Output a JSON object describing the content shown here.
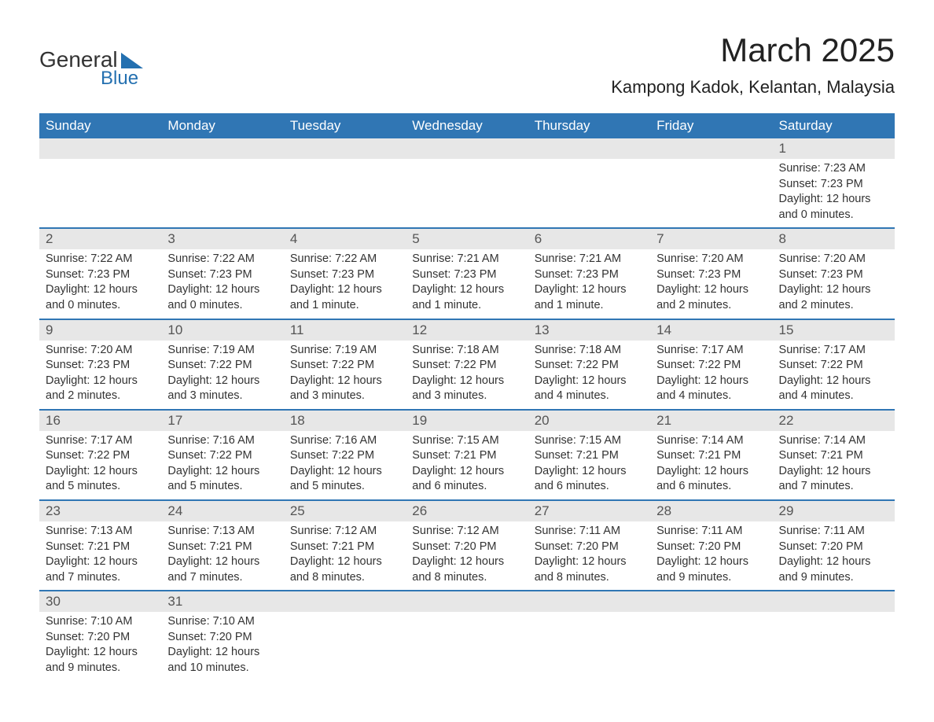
{
  "logo": {
    "text1": "General",
    "text2": "Blue",
    "brand_color": "#2470b0"
  },
  "header": {
    "month_title": "March 2025",
    "location": "Kampong Kadok, Kelantan, Malaysia"
  },
  "colors": {
    "header_bg": "#3076b4",
    "header_text": "#ffffff",
    "daynum_bg": "#e7e7e7",
    "row_border": "#3076b4",
    "text": "#333333"
  },
  "day_headers": [
    "Sunday",
    "Monday",
    "Tuesday",
    "Wednesday",
    "Thursday",
    "Friday",
    "Saturday"
  ],
  "weeks": [
    [
      null,
      null,
      null,
      null,
      null,
      null,
      {
        "num": "1",
        "sunrise": "Sunrise: 7:23 AM",
        "sunset": "Sunset: 7:23 PM",
        "daylight1": "Daylight: 12 hours",
        "daylight2": "and 0 minutes."
      }
    ],
    [
      {
        "num": "2",
        "sunrise": "Sunrise: 7:22 AM",
        "sunset": "Sunset: 7:23 PM",
        "daylight1": "Daylight: 12 hours",
        "daylight2": "and 0 minutes."
      },
      {
        "num": "3",
        "sunrise": "Sunrise: 7:22 AM",
        "sunset": "Sunset: 7:23 PM",
        "daylight1": "Daylight: 12 hours",
        "daylight2": "and 0 minutes."
      },
      {
        "num": "4",
        "sunrise": "Sunrise: 7:22 AM",
        "sunset": "Sunset: 7:23 PM",
        "daylight1": "Daylight: 12 hours",
        "daylight2": "and 1 minute."
      },
      {
        "num": "5",
        "sunrise": "Sunrise: 7:21 AM",
        "sunset": "Sunset: 7:23 PM",
        "daylight1": "Daylight: 12 hours",
        "daylight2": "and 1 minute."
      },
      {
        "num": "6",
        "sunrise": "Sunrise: 7:21 AM",
        "sunset": "Sunset: 7:23 PM",
        "daylight1": "Daylight: 12 hours",
        "daylight2": "and 1 minute."
      },
      {
        "num": "7",
        "sunrise": "Sunrise: 7:20 AM",
        "sunset": "Sunset: 7:23 PM",
        "daylight1": "Daylight: 12 hours",
        "daylight2": "and 2 minutes."
      },
      {
        "num": "8",
        "sunrise": "Sunrise: 7:20 AM",
        "sunset": "Sunset: 7:23 PM",
        "daylight1": "Daylight: 12 hours",
        "daylight2": "and 2 minutes."
      }
    ],
    [
      {
        "num": "9",
        "sunrise": "Sunrise: 7:20 AM",
        "sunset": "Sunset: 7:23 PM",
        "daylight1": "Daylight: 12 hours",
        "daylight2": "and 2 minutes."
      },
      {
        "num": "10",
        "sunrise": "Sunrise: 7:19 AM",
        "sunset": "Sunset: 7:22 PM",
        "daylight1": "Daylight: 12 hours",
        "daylight2": "and 3 minutes."
      },
      {
        "num": "11",
        "sunrise": "Sunrise: 7:19 AM",
        "sunset": "Sunset: 7:22 PM",
        "daylight1": "Daylight: 12 hours",
        "daylight2": "and 3 minutes."
      },
      {
        "num": "12",
        "sunrise": "Sunrise: 7:18 AM",
        "sunset": "Sunset: 7:22 PM",
        "daylight1": "Daylight: 12 hours",
        "daylight2": "and 3 minutes."
      },
      {
        "num": "13",
        "sunrise": "Sunrise: 7:18 AM",
        "sunset": "Sunset: 7:22 PM",
        "daylight1": "Daylight: 12 hours",
        "daylight2": "and 4 minutes."
      },
      {
        "num": "14",
        "sunrise": "Sunrise: 7:17 AM",
        "sunset": "Sunset: 7:22 PM",
        "daylight1": "Daylight: 12 hours",
        "daylight2": "and 4 minutes."
      },
      {
        "num": "15",
        "sunrise": "Sunrise: 7:17 AM",
        "sunset": "Sunset: 7:22 PM",
        "daylight1": "Daylight: 12 hours",
        "daylight2": "and 4 minutes."
      }
    ],
    [
      {
        "num": "16",
        "sunrise": "Sunrise: 7:17 AM",
        "sunset": "Sunset: 7:22 PM",
        "daylight1": "Daylight: 12 hours",
        "daylight2": "and 5 minutes."
      },
      {
        "num": "17",
        "sunrise": "Sunrise: 7:16 AM",
        "sunset": "Sunset: 7:22 PM",
        "daylight1": "Daylight: 12 hours",
        "daylight2": "and 5 minutes."
      },
      {
        "num": "18",
        "sunrise": "Sunrise: 7:16 AM",
        "sunset": "Sunset: 7:22 PM",
        "daylight1": "Daylight: 12 hours",
        "daylight2": "and 5 minutes."
      },
      {
        "num": "19",
        "sunrise": "Sunrise: 7:15 AM",
        "sunset": "Sunset: 7:21 PM",
        "daylight1": "Daylight: 12 hours",
        "daylight2": "and 6 minutes."
      },
      {
        "num": "20",
        "sunrise": "Sunrise: 7:15 AM",
        "sunset": "Sunset: 7:21 PM",
        "daylight1": "Daylight: 12 hours",
        "daylight2": "and 6 minutes."
      },
      {
        "num": "21",
        "sunrise": "Sunrise: 7:14 AM",
        "sunset": "Sunset: 7:21 PM",
        "daylight1": "Daylight: 12 hours",
        "daylight2": "and 6 minutes."
      },
      {
        "num": "22",
        "sunrise": "Sunrise: 7:14 AM",
        "sunset": "Sunset: 7:21 PM",
        "daylight1": "Daylight: 12 hours",
        "daylight2": "and 7 minutes."
      }
    ],
    [
      {
        "num": "23",
        "sunrise": "Sunrise: 7:13 AM",
        "sunset": "Sunset: 7:21 PM",
        "daylight1": "Daylight: 12 hours",
        "daylight2": "and 7 minutes."
      },
      {
        "num": "24",
        "sunrise": "Sunrise: 7:13 AM",
        "sunset": "Sunset: 7:21 PM",
        "daylight1": "Daylight: 12 hours",
        "daylight2": "and 7 minutes."
      },
      {
        "num": "25",
        "sunrise": "Sunrise: 7:12 AM",
        "sunset": "Sunset: 7:21 PM",
        "daylight1": "Daylight: 12 hours",
        "daylight2": "and 8 minutes."
      },
      {
        "num": "26",
        "sunrise": "Sunrise: 7:12 AM",
        "sunset": "Sunset: 7:20 PM",
        "daylight1": "Daylight: 12 hours",
        "daylight2": "and 8 minutes."
      },
      {
        "num": "27",
        "sunrise": "Sunrise: 7:11 AM",
        "sunset": "Sunset: 7:20 PM",
        "daylight1": "Daylight: 12 hours",
        "daylight2": "and 8 minutes."
      },
      {
        "num": "28",
        "sunrise": "Sunrise: 7:11 AM",
        "sunset": "Sunset: 7:20 PM",
        "daylight1": "Daylight: 12 hours",
        "daylight2": "and 9 minutes."
      },
      {
        "num": "29",
        "sunrise": "Sunrise: 7:11 AM",
        "sunset": "Sunset: 7:20 PM",
        "daylight1": "Daylight: 12 hours",
        "daylight2": "and 9 minutes."
      }
    ],
    [
      {
        "num": "30",
        "sunrise": "Sunrise: 7:10 AM",
        "sunset": "Sunset: 7:20 PM",
        "daylight1": "Daylight: 12 hours",
        "daylight2": "and 9 minutes."
      },
      {
        "num": "31",
        "sunrise": "Sunrise: 7:10 AM",
        "sunset": "Sunset: 7:20 PM",
        "daylight1": "Daylight: 12 hours",
        "daylight2": "and 10 minutes."
      },
      null,
      null,
      null,
      null,
      null
    ]
  ]
}
